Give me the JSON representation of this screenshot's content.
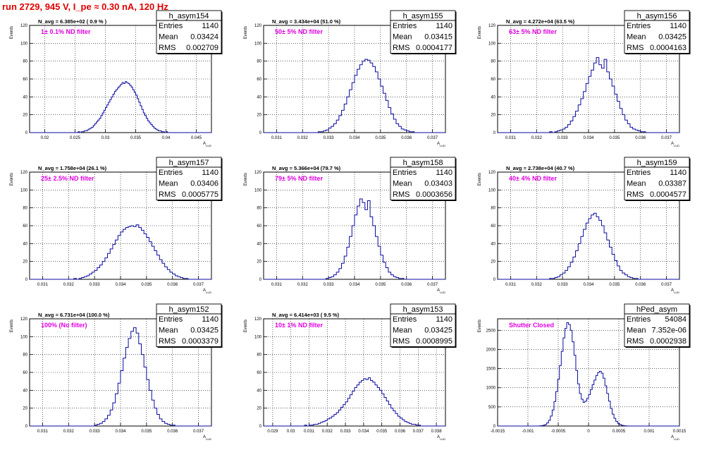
{
  "title": "run 2729,   945 V, I_pe ≈ 0.30 nA, 120 Hz",
  "colors": {
    "title": "#e00000",
    "histogram": "#0a0aa0",
    "annotation": "#e000e0",
    "grid": "#000000"
  },
  "chart_data": [
    {
      "type": "bar",
      "name": "h_asym154",
      "ylabel": "Events",
      "xlabel": "A_LUD",
      "ylim": [
        0,
        120
      ],
      "yticks": [
        0,
        20,
        40,
        60,
        80,
        100,
        120
      ],
      "xlim": [
        0.0175,
        0.0475
      ],
      "xticks": [
        "0.02",
        "0.025",
        "0.03",
        "0.035",
        "0.04",
        "0.045"
      ],
      "nbins": 120,
      "grid": true,
      "n_avg_label": "N_avg = 6.385e+02 ( 0.9 % )",
      "annotation": "1± 0.1% ND filter",
      "stats": [
        [
          "Entries",
          "1140"
        ],
        [
          "Mean",
          "0.03424"
        ],
        [
          "RMS",
          "0.002709"
        ]
      ],
      "counts": [
        0,
        0,
        0,
        0,
        0,
        0,
        0,
        0,
        0,
        0,
        0,
        0,
        0,
        0,
        0,
        0,
        0,
        0,
        0,
        0,
        0,
        0,
        0,
        0,
        0,
        0,
        0,
        0,
        0,
        0,
        0,
        0,
        1,
        0,
        1,
        1,
        2,
        2,
        3,
        4,
        5,
        6,
        8,
        10,
        12,
        14,
        16,
        19,
        22,
        25,
        28,
        31,
        34,
        37,
        40,
        43,
        46,
        48,
        50,
        52,
        54,
        56,
        55,
        57,
        56,
        55,
        53,
        51,
        48,
        45,
        42,
        38,
        34,
        30,
        26,
        22,
        19,
        16,
        13,
        11,
        9,
        7,
        5,
        4,
        3,
        2,
        2,
        1,
        1,
        0,
        1,
        0,
        0,
        0,
        0,
        0,
        0,
        0,
        0,
        0,
        0,
        0,
        0,
        0,
        0,
        0,
        0,
        0,
        0,
        0,
        0,
        0,
        0,
        0,
        0,
        0,
        0,
        0,
        0,
        0
      ]
    },
    {
      "type": "bar",
      "name": "h_asym155",
      "ylabel": "Events",
      "xlabel": "A_LUD",
      "ylim": [
        0,
        120
      ],
      "yticks": [
        0,
        20,
        40,
        60,
        80,
        100,
        120
      ],
      "xlim": [
        0.0305,
        0.0375
      ],
      "xticks": [
        "0.031",
        "0.032",
        "0.033",
        "0.034",
        "0.035",
        "0.036",
        "0.037"
      ],
      "nbins": 70,
      "grid": true,
      "n_avg_label": "N_avg = 3.434e+04 (51.0 %)",
      "annotation": "50± 5% ND filter",
      "stats": [
        [
          "Entries",
          "1140"
        ],
        [
          "Mean",
          "0.03415"
        ],
        [
          "RMS",
          "0.0004177"
        ]
      ],
      "counts": [
        0,
        0,
        0,
        0,
        0,
        0,
        0,
        0,
        0,
        0,
        0,
        0,
        0,
        0,
        0,
        0,
        0,
        0,
        0,
        0,
        0,
        1,
        1,
        2,
        3,
        5,
        7,
        10,
        14,
        19,
        25,
        32,
        40,
        48,
        56,
        64,
        71,
        76,
        80,
        82,
        81,
        78,
        74,
        68,
        60,
        52,
        44,
        36,
        28,
        21,
        15,
        10,
        7,
        4,
        3,
        2,
        1,
        1,
        0,
        0,
        0,
        0,
        0,
        0,
        0,
        0,
        0,
        0,
        0,
        0
      ]
    },
    {
      "type": "bar",
      "name": "h_asym156",
      "ylabel": "Events",
      "xlabel": "A_LUD",
      "ylim": [
        0,
        120
      ],
      "yticks": [
        0,
        20,
        40,
        60,
        80,
        100,
        120
      ],
      "xlim": [
        0.0305,
        0.0375
      ],
      "xticks": [
        "0.031",
        "0.032",
        "0.033",
        "0.034",
        "0.035",
        "0.036",
        "0.037"
      ],
      "nbins": 70,
      "grid": true,
      "n_avg_label": "N_avg = 4.272e+04 (63.5 %)",
      "annotation": "63± 5% ND filter",
      "stats": [
        [
          "Entries",
          "1140"
        ],
        [
          "Mean",
          "0.03425"
        ],
        [
          "RMS",
          "0.0004163"
        ]
      ],
      "counts": [
        0,
        0,
        0,
        0,
        0,
        0,
        0,
        0,
        0,
        0,
        0,
        0,
        0,
        0,
        0,
        0,
        0,
        0,
        0,
        0,
        1,
        0,
        1,
        2,
        3,
        4,
        6,
        9,
        13,
        18,
        24,
        31,
        38,
        46,
        55,
        63,
        70,
        78,
        84,
        76,
        72,
        82,
        68,
        60,
        52,
        43,
        35,
        27,
        20,
        14,
        10,
        6,
        4,
        3,
        2,
        1,
        1,
        0,
        0,
        0,
        0,
        0,
        0,
        0,
        0,
        0,
        0,
        0,
        0,
        0
      ]
    },
    {
      "type": "bar",
      "name": "h_asym157",
      "ylabel": "Events",
      "xlabel": "A_LUD",
      "ylim": [
        0,
        120
      ],
      "yticks": [
        0,
        20,
        40,
        60,
        80,
        100,
        120
      ],
      "xlim": [
        0.0305,
        0.0375
      ],
      "xticks": [
        "0.031",
        "0.032",
        "0.033",
        "0.034",
        "0.035",
        "0.036",
        "0.037"
      ],
      "nbins": 70,
      "grid": true,
      "n_avg_label": "N_avg = 1.758e+04 (26.1 %)",
      "annotation": "25± 2.5% ND filter",
      "stats": [
        [
          "Entries",
          "1140"
        ],
        [
          "Mean",
          "0.03406"
        ],
        [
          "RMS",
          "0.0005775"
        ]
      ],
      "counts": [
        0,
        0,
        0,
        0,
        0,
        0,
        0,
        0,
        0,
        0,
        0,
        0,
        0,
        0,
        0,
        0,
        0,
        1,
        0,
        1,
        2,
        3,
        4,
        6,
        8,
        10,
        13,
        16,
        20,
        24,
        29,
        34,
        39,
        44,
        49,
        53,
        56,
        58,
        59,
        60,
        59,
        61,
        58,
        55,
        51,
        47,
        42,
        37,
        32,
        27,
        22,
        18,
        14,
        11,
        8,
        6,
        4,
        3,
        2,
        1,
        1,
        0,
        0,
        0,
        0,
        0,
        0,
        0,
        0,
        0
      ]
    },
    {
      "type": "bar",
      "name": "h_asym158",
      "ylabel": "Events",
      "xlabel": "A_LUD",
      "ylim": [
        0,
        120
      ],
      "yticks": [
        0,
        20,
        40,
        60,
        80,
        100,
        120
      ],
      "xlim": [
        0.0305,
        0.0375
      ],
      "xticks": [
        "0.031",
        "0.032",
        "0.033",
        "0.034",
        "0.035",
        "0.036",
        "0.037"
      ],
      "nbins": 70,
      "grid": true,
      "n_avg_label": "N_avg = 5.366e+04 (79.7 %)",
      "annotation": "79± 5% ND filter",
      "stats": [
        [
          "Entries",
          "1140"
        ],
        [
          "Mean",
          "0.03403"
        ],
        [
          "RMS",
          "0.0003656"
        ]
      ],
      "counts": [
        0,
        0,
        0,
        0,
        0,
        0,
        0,
        0,
        0,
        0,
        0,
        0,
        0,
        0,
        0,
        0,
        0,
        0,
        0,
        0,
        0,
        0,
        0,
        0,
        1,
        2,
        3,
        5,
        8,
        12,
        18,
        26,
        36,
        48,
        60,
        72,
        82,
        90,
        86,
        78,
        88,
        70,
        60,
        48,
        37,
        27,
        19,
        13,
        8,
        5,
        3,
        2,
        1,
        1,
        0,
        0,
        0,
        0,
        0,
        0,
        0,
        0,
        0,
        0,
        0,
        0,
        0,
        0,
        0,
        0
      ]
    },
    {
      "type": "bar",
      "name": "h_asym159",
      "ylabel": "Events",
      "xlabel": "A_LUD",
      "ylim": [
        0,
        120
      ],
      "yticks": [
        0,
        20,
        40,
        60,
        80,
        100,
        120
      ],
      "xlim": [
        0.0305,
        0.0375
      ],
      "xticks": [
        "0.031",
        "0.032",
        "0.033",
        "0.034",
        "0.035",
        "0.036",
        "0.037"
      ],
      "nbins": 70,
      "grid": true,
      "n_avg_label": "N_avg = 2.738e+04 (40.7 %)",
      "annotation": "40± 4% ND filter",
      "stats": [
        [
          "Entries",
          "1140"
        ],
        [
          "Mean",
          "0.03387"
        ],
        [
          "RMS",
          "0.0004577"
        ]
      ],
      "counts": [
        0,
        0,
        0,
        0,
        0,
        0,
        0,
        0,
        0,
        0,
        0,
        0,
        0,
        0,
        0,
        0,
        0,
        0,
        0,
        0,
        1,
        1,
        2,
        3,
        5,
        7,
        10,
        14,
        19,
        25,
        32,
        40,
        48,
        56,
        63,
        68,
        72,
        74,
        70,
        66,
        60,
        52,
        44,
        36,
        28,
        21,
        15,
        10,
        7,
        5,
        3,
        2,
        1,
        1,
        0,
        0,
        0,
        0,
        0,
        0,
        0,
        0,
        0,
        0,
        0,
        0,
        0,
        0,
        0,
        0
      ]
    },
    {
      "type": "bar",
      "name": "h_asym152",
      "ylabel": "Events",
      "xlabel": "A_LUD",
      "ylim": [
        0,
        120
      ],
      "yticks": [
        0,
        20,
        40,
        60,
        80,
        100,
        120
      ],
      "xlim": [
        0.0305,
        0.0375
      ],
      "xticks": [
        "0.031",
        "0.032",
        "0.033",
        "0.034",
        "0.035",
        "0.036",
        "0.037"
      ],
      "nbins": 70,
      "grid": true,
      "n_avg_label": "N_avg = 6.731e+04 (100.0 %)",
      "annotation": "100% (No filter)",
      "stats": [
        [
          "Entries",
          "1140"
        ],
        [
          "Mean",
          "0.03425"
        ],
        [
          "RMS",
          "0.0003379"
        ]
      ],
      "counts": [
        0,
        0,
        0,
        0,
        0,
        0,
        0,
        0,
        0,
        0,
        0,
        0,
        0,
        0,
        0,
        0,
        0,
        0,
        0,
        0,
        0,
        0,
        0,
        0,
        0,
        1,
        2,
        3,
        5,
        8,
        12,
        18,
        26,
        36,
        48,
        62,
        76,
        88,
        98,
        106,
        110,
        104,
        92,
        80,
        66,
        52,
        40,
        29,
        20,
        13,
        8,
        5,
        3,
        2,
        1,
        1,
        0,
        0,
        0,
        0,
        0,
        0,
        0,
        0,
        0,
        0,
        0,
        0,
        0,
        0
      ]
    },
    {
      "type": "bar",
      "name": "h_asym153",
      "ylabel": "Events",
      "xlabel": "A_LUD",
      "ylim": [
        0,
        120
      ],
      "yticks": [
        0,
        20,
        40,
        60,
        80,
        100,
        120
      ],
      "xlim": [
        0.0285,
        0.0385
      ],
      "xticks": [
        "0.029",
        "0.03",
        "0.031",
        "0.032",
        "0.033",
        "0.034",
        "0.035",
        "0.036",
        "0.037",
        "0.038"
      ],
      "nbins": 80,
      "grid": true,
      "n_avg_label": "N_avg = 6.414e+03 ( 9.5 %)",
      "annotation": "10± 1% ND filter",
      "stats": [
        [
          "Entries",
          "1140"
        ],
        [
          "Mean",
          "0.03425"
        ],
        [
          "RMS",
          "0.0008995"
        ]
      ],
      "counts": [
        0,
        0,
        0,
        0,
        0,
        0,
        0,
        0,
        0,
        0,
        0,
        0,
        0,
        0,
        0,
        0,
        0,
        0,
        1,
        0,
        1,
        1,
        2,
        2,
        3,
        4,
        5,
        6,
        8,
        9,
        11,
        13,
        15,
        18,
        21,
        24,
        27,
        31,
        35,
        39,
        43,
        46,
        49,
        51,
        53,
        52,
        54,
        51,
        49,
        46,
        43,
        40,
        36,
        32,
        28,
        24,
        20,
        17,
        14,
        11,
        9,
        7,
        5,
        4,
        3,
        2,
        2,
        1,
        1,
        0,
        0,
        0,
        0,
        0,
        0,
        0,
        0,
        0,
        0,
        0
      ]
    },
    {
      "type": "bar",
      "name": "hPed_asym",
      "ylabel": "Events",
      "xlabel": "A_LUD",
      "ylim": [
        0,
        2800
      ],
      "yticks": [
        0,
        500,
        1000,
        1500,
        2000,
        2500
      ],
      "xlim": [
        -0.0015,
        0.0015
      ],
      "xticks": [
        "-0.0015",
        "-0.001",
        "-0.0005",
        "0",
        "0.0005",
        "0.001",
        "0.0015"
      ],
      "nbins": 100,
      "grid": true,
      "n_avg_label": "",
      "annotation": "Shutter Closed",
      "stats": [
        [
          "Entries",
          "54084"
        ],
        [
          "Mean",
          "7.352e-06"
        ],
        [
          "RMS",
          "0.0002938"
        ]
      ],
      "counts": [
        0,
        0,
        0,
        0,
        0,
        0,
        0,
        0,
        0,
        0,
        0,
        0,
        0,
        0,
        0,
        0,
        0,
        0,
        0,
        0,
        0,
        0,
        0,
        5,
        10,
        20,
        40,
        80,
        150,
        260,
        420,
        640,
        900,
        1220,
        1580,
        1950,
        2300,
        2550,
        2700,
        2650,
        2500,
        2200,
        1850,
        1450,
        1100,
        850,
        700,
        620,
        650,
        720,
        820,
        950,
        1080,
        1200,
        1320,
        1400,
        1430,
        1380,
        1250,
        1050,
        850,
        650,
        460,
        310,
        200,
        120,
        70,
        40,
        20,
        10,
        5,
        2,
        0,
        0,
        0,
        0,
        0,
        0,
        0,
        0,
        0,
        0,
        0,
        0,
        0,
        0,
        0,
        0,
        0,
        0,
        0,
        0,
        0,
        0,
        0,
        0,
        0,
        0,
        0,
        0
      ]
    }
  ]
}
